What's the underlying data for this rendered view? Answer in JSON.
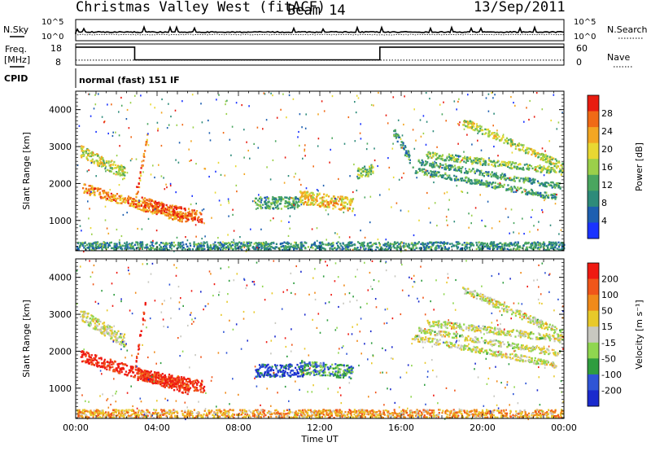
{
  "header": {
    "station": "Christmas Valley West (fitACF)",
    "beam": "Beam 14",
    "date": "13/Sep/2011"
  },
  "noise_panel": {
    "left_label": "N.Sky",
    "right_label": "N.Search",
    "left_ticks": [
      "10^5",
      "10^0"
    ],
    "right_ticks": [
      "10^5",
      "10^0"
    ]
  },
  "freq_panel": {
    "left_label_1": "Freq.",
    "left_label_2": "[MHz]",
    "left_ticks": [
      "18",
      "8"
    ],
    "right_label": "Nave",
    "right_ticks": [
      "60",
      "0"
    ],
    "freq_steps": [
      {
        "t": 0.0,
        "f": 16.5
      },
      {
        "t": 2.9,
        "f": 10.5
      },
      {
        "t": 14.95,
        "f": 16.5
      },
      {
        "t": 24.0,
        "f": 16.5
      }
    ],
    "nave_level": 14
  },
  "cpid": {
    "label": "CPID",
    "value": "normal (fast) 151 IF"
  },
  "colors": {
    "power_scale": [
      "#1a33ff",
      "#1d5fb0",
      "#2e8b7a",
      "#4aa65f",
      "#9bd04a",
      "#e8d832",
      "#f3a622",
      "#f06a16",
      "#e81c10"
    ],
    "velocity_scale": [
      "#1a2acd",
      "#2f55d6",
      "#2f9d3f",
      "#8fd64f",
      "#c8c8c0",
      "#e8c92a",
      "#f08a1a",
      "#f0561a",
      "#ef1a12"
    ]
  },
  "chart_data": [
    {
      "type": "heatmap",
      "panel": "power",
      "ylabel": "Slant Range [km]",
      "xlim": [
        0,
        24
      ],
      "ylim": [
        180,
        4500
      ],
      "y_ticks": [
        1000,
        2000,
        3000,
        4000
      ],
      "colorbar_label": "Power [dB]",
      "colorbar_ticks": [
        "28",
        "24",
        "20",
        "16",
        "12",
        "8",
        "4"
      ],
      "features": [
        {
          "t0": 0.2,
          "t1": 2.4,
          "r0": 2900,
          "r1": 2300,
          "w": 320,
          "v": 0.55
        },
        {
          "t0": 0.3,
          "t1": 5.5,
          "r0": 1900,
          "r1": 1050,
          "w": 260,
          "v": 0.75
        },
        {
          "t0": 3.2,
          "t1": 6.2,
          "r0": 1500,
          "r1": 1100,
          "w": 300,
          "v": 0.85
        },
        {
          "t0": 2.9,
          "t1": 3.5,
          "r0": 1500,
          "r1": 3300,
          "w": 220,
          "v": 0.8
        },
        {
          "t0": 8.8,
          "t1": 11.0,
          "r0": 1500,
          "r1": 1500,
          "w": 320,
          "v": 0.35
        },
        {
          "t0": 11.0,
          "t1": 13.6,
          "r0": 1650,
          "r1": 1450,
          "w": 360,
          "v": 0.65
        },
        {
          "t0": 13.8,
          "t1": 14.6,
          "r0": 2300,
          "r1": 2400,
          "w": 300,
          "v": 0.45
        },
        {
          "t0": 16.5,
          "t1": 23.6,
          "r0": 2400,
          "r1": 1650,
          "w": 160,
          "v": 0.35
        },
        {
          "t0": 16.8,
          "t1": 23.8,
          "r0": 2600,
          "r1": 1950,
          "w": 150,
          "v": 0.35
        },
        {
          "t0": 17.2,
          "t1": 23.9,
          "r0": 2800,
          "r1": 2350,
          "w": 180,
          "v": 0.45
        },
        {
          "t0": 19.0,
          "t1": 23.9,
          "r0": 3700,
          "r1": 2500,
          "w": 200,
          "v": 0.55
        },
        {
          "t0": 15.6,
          "t1": 16.4,
          "r0": 3400,
          "r1": 2700,
          "w": 260,
          "v": 0.3
        },
        {
          "t0": 0.0,
          "t1": 24.0,
          "r0": 330,
          "r1": 330,
          "w": 220,
          "v": 0.3
        }
      ]
    },
    {
      "type": "heatmap",
      "panel": "velocity",
      "ylabel": "Slant Range [km]",
      "xlabel": "Time UT",
      "xlim": [
        0,
        24
      ],
      "ylim": [
        180,
        4500
      ],
      "y_ticks": [
        1000,
        2000,
        3000,
        4000
      ],
      "x_ticks": [
        "00:00",
        "04:00",
        "08:00",
        "12:00",
        "16:00",
        "20:00",
        "00:00"
      ],
      "colorbar_label": "Velocity [m s⁻¹]",
      "colorbar_ticks": [
        "200",
        "100",
        "50",
        "15",
        "-15",
        "-50",
        "-100",
        "-200"
      ],
      "features": [
        {
          "t0": 0.2,
          "t1": 2.4,
          "r0": 3000,
          "r1": 2300,
          "w": 340,
          "v": 0.5
        },
        {
          "t0": 0.2,
          "t1": 5.5,
          "r0": 1900,
          "r1": 1000,
          "w": 300,
          "v": 0.95
        },
        {
          "t0": 3.0,
          "t1": 6.3,
          "r0": 1400,
          "r1": 1050,
          "w": 320,
          "v": 0.92
        },
        {
          "t0": 2.9,
          "t1": 3.4,
          "r0": 1600,
          "r1": 3300,
          "w": 220,
          "v": 0.95
        },
        {
          "t0": 8.8,
          "t1": 11.2,
          "r0": 1500,
          "r1": 1500,
          "w": 340,
          "v": 0.12
        },
        {
          "t0": 11.0,
          "t1": 13.6,
          "r0": 1600,
          "r1": 1450,
          "w": 360,
          "v": 0.28
        },
        {
          "t0": 16.5,
          "t1": 23.6,
          "r0": 2400,
          "r1": 1650,
          "w": 160,
          "v": 0.5
        },
        {
          "t0": 16.8,
          "t1": 23.8,
          "r0": 2600,
          "r1": 1950,
          "w": 150,
          "v": 0.5
        },
        {
          "t0": 17.2,
          "t1": 23.9,
          "r0": 2800,
          "r1": 2350,
          "w": 180,
          "v": 0.5
        },
        {
          "t0": 19.0,
          "t1": 23.9,
          "r0": 3700,
          "r1": 2500,
          "w": 200,
          "v": 0.5
        },
        {
          "t0": 0.0,
          "t1": 24.0,
          "r0": 330,
          "r1": 330,
          "w": 220,
          "v": 0.68
        }
      ]
    }
  ]
}
